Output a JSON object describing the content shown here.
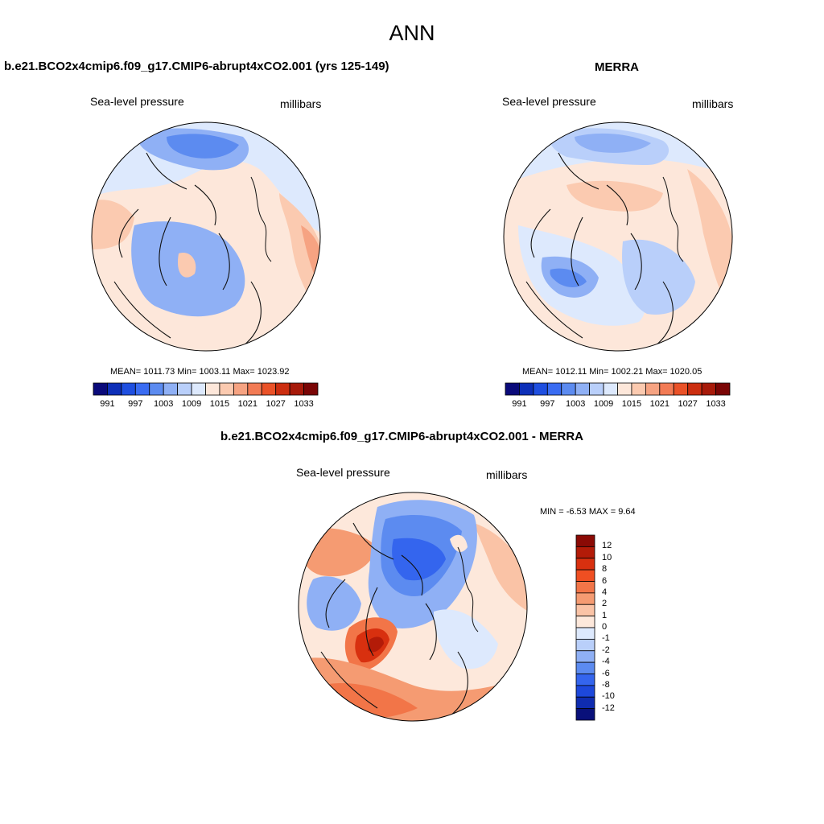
{
  "title": "ANN",
  "panels": {
    "left": {
      "title": "b.e21.BCO2x4cmip6.f09_g17.CMIP6-abrupt4xCO2.001 (yrs 125-149)",
      "variable": "Sea-level pressure",
      "units": "millibars",
      "stats": "MEAN= 1011.73  Min= 1003.11  Max= 1023.92"
    },
    "right": {
      "title": "MERRA",
      "variable": "Sea-level pressure",
      "units": "millibars",
      "stats": "MEAN= 1012.11  Min= 1002.21  Max= 1020.05"
    },
    "diff": {
      "title": "b.e21.BCO2x4cmip6.f09_g17.CMIP6-abrupt4xCO2.001 - MERRA",
      "variable": "Sea-level pressure",
      "units": "millibars",
      "stats": "MIN =  -6.53 MAX =   9.64"
    }
  },
  "slp_colorbar": {
    "tick_labels": [
      "991",
      "997",
      "1003",
      "1009",
      "1015",
      "1021",
      "1027",
      "1033"
    ],
    "colors": [
      "#0a0a7a",
      "#0d2fb8",
      "#1f4fe0",
      "#3a6cf2",
      "#5c8bf0",
      "#8fb0f5",
      "#b9cffa",
      "#dde9fd",
      "#fde7da",
      "#fbcab0",
      "#f6a382",
      "#f27b55",
      "#ea5228",
      "#cc2e10",
      "#a71a0a",
      "#7a0505"
    ]
  },
  "diff_colorbar": {
    "tick_labels": [
      "12",
      "10",
      "8",
      "6",
      "4",
      "2",
      "1",
      "0",
      "-1",
      "-2",
      "-4",
      "-6",
      "-8",
      "-10",
      "-12"
    ],
    "colors": [
      "#8b0a05",
      "#b31b08",
      "#d8300f",
      "#ef4f22",
      "#f27548",
      "#f59b72",
      "#fac3a6",
      "#fde8db",
      "#dde9fd",
      "#b9cffa",
      "#8fb0f5",
      "#5c8bf0",
      "#3465ee",
      "#1d48dc",
      "#0f2cb0",
      "#09107a"
    ]
  }
}
